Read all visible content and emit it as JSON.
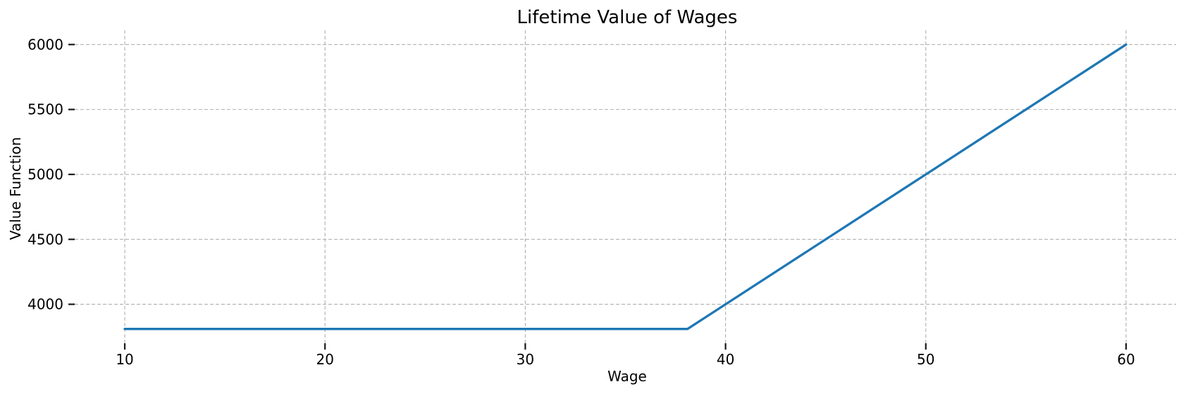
{
  "chart_data": {
    "type": "line",
    "title": "Lifetime Value of Wages",
    "xlabel": "Wage",
    "ylabel": "Value Function",
    "x_ticks": [
      10,
      20,
      30,
      40,
      50,
      60
    ],
    "y_ticks": [
      4000,
      4500,
      5000,
      5500,
      6000
    ],
    "xlim": [
      7.5,
      62.5
    ],
    "ylim": [
      3700,
      6110
    ],
    "grid": true,
    "grid_style": "dashed",
    "legend_position": "none",
    "series": [
      {
        "name": "value-function",
        "description": "Piecewise-linear value function: flat reservation-value segment, then rising linearly in wage",
        "x": [
          10,
          20,
          30,
          38.1,
          40,
          50,
          60
        ],
        "y": [
          3810,
          3810,
          3810,
          3810,
          4000,
          5000,
          6000
        ]
      }
    ],
    "colors": {
      "line": "#1f77b4",
      "grid": "#b0b0b0",
      "tick": "#1a1a1a",
      "text": "#000000",
      "background": "#ffffff"
    }
  }
}
